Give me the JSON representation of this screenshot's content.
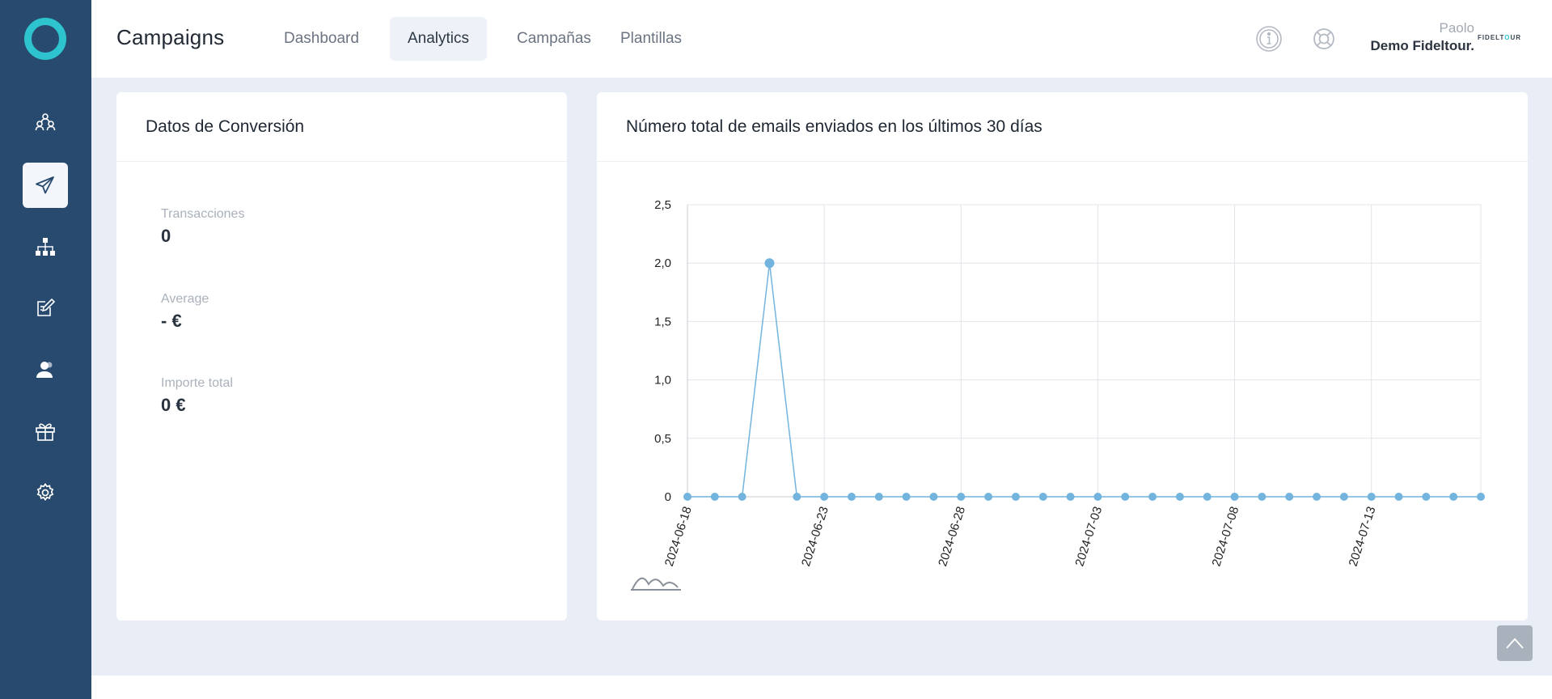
{
  "app": {
    "title": "Campaigns"
  },
  "tabs": [
    {
      "label": "Dashboard",
      "active": false
    },
    {
      "label": "Analytics",
      "active": true
    },
    {
      "label": "Campañas",
      "active": false
    },
    {
      "label": "Plantillas",
      "active": false
    }
  ],
  "user": {
    "name": "Paolo",
    "company": "Demo Fideltour.",
    "brand_logo_text": "FIDELTOUR"
  },
  "sidebar": {
    "items": [
      {
        "icon": "people-network-icon",
        "active": false
      },
      {
        "icon": "send-icon",
        "active": true
      },
      {
        "icon": "sitemap-icon",
        "active": false
      },
      {
        "icon": "edit-document-icon",
        "active": false
      },
      {
        "icon": "contacts-icon",
        "active": false
      },
      {
        "icon": "gift-icon",
        "active": false
      },
      {
        "icon": "gear-icon",
        "active": false
      }
    ]
  },
  "conversion": {
    "title": "Datos de Conversión",
    "stats": [
      {
        "label": "Transacciones",
        "value": "0"
      },
      {
        "label": "Average",
        "value": "- €"
      },
      {
        "label": "Importe total",
        "value": "0 €"
      }
    ]
  },
  "emails_chart": {
    "title": "Número total de emails enviados en los últimos 30 días"
  },
  "chart_data": {
    "type": "line",
    "title": "Número total de emails enviados en los últimos 30 días",
    "x": [
      "2024-06-18",
      "2024-06-19",
      "2024-06-20",
      "2024-06-21",
      "2024-06-22",
      "2024-06-23",
      "2024-06-24",
      "2024-06-25",
      "2024-06-26",
      "2024-06-27",
      "2024-06-28",
      "2024-06-29",
      "2024-06-30",
      "2024-07-01",
      "2024-07-02",
      "2024-07-03",
      "2024-07-04",
      "2024-07-05",
      "2024-07-06",
      "2024-07-07",
      "2024-07-08",
      "2024-07-09",
      "2024-07-10",
      "2024-07-11",
      "2024-07-12",
      "2024-07-13",
      "2024-07-14",
      "2024-07-15",
      "2024-07-16",
      "2024-07-17"
    ],
    "series": [
      {
        "values": [
          0,
          0,
          0,
          2,
          0,
          0,
          0,
          0,
          0,
          0,
          0,
          0,
          0,
          0,
          0,
          0,
          0,
          0,
          0,
          0,
          0,
          0,
          0,
          0,
          0,
          0,
          0,
          0,
          0,
          0
        ]
      }
    ],
    "x_tick_labels": [
      "2024-06-18",
      "2024-06-23",
      "2024-06-28",
      "2024-07-03",
      "2024-07-08",
      "2024-07-13"
    ],
    "y_ticks": [
      "0",
      "0,5",
      "1,0",
      "1,5",
      "2,0",
      "2,5"
    ],
    "ylim": [
      0,
      2.5
    ],
    "grid": true,
    "legend": "none",
    "color": "#72b4de"
  },
  "colors": {
    "sidebar": "#284a6e",
    "accent": "#2ec4cf",
    "background": "#e9edf5"
  }
}
